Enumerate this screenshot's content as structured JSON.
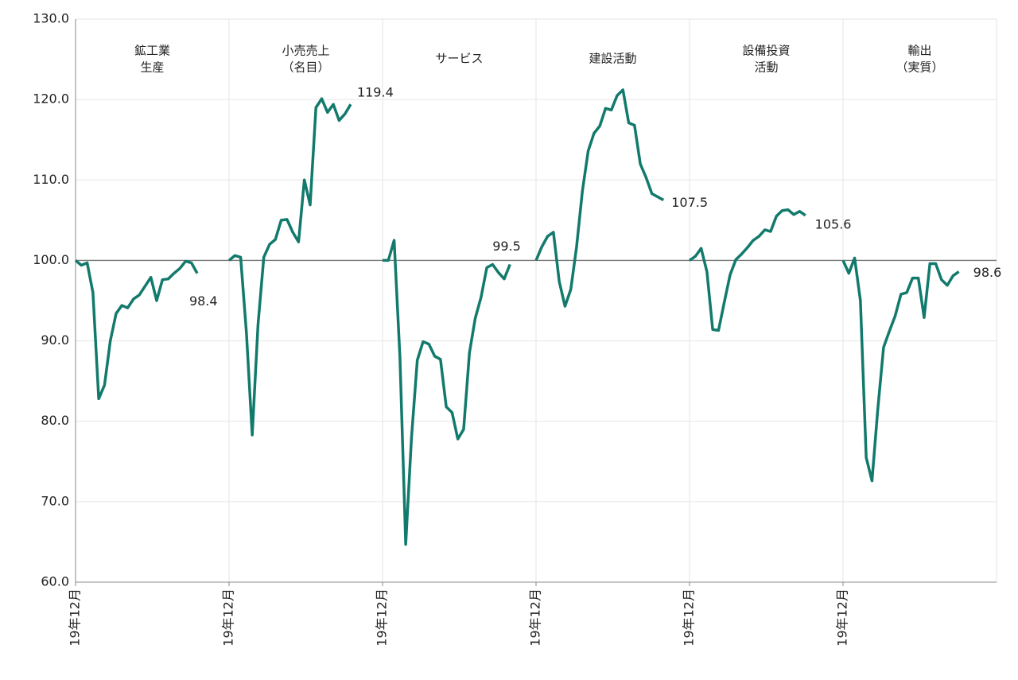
{
  "chart_data": {
    "type": "line",
    "categories": [
      "19年12月",
      null,
      null,
      null,
      null,
      null,
      null,
      null,
      null,
      null,
      null,
      null,
      null,
      null,
      null,
      null,
      null,
      null,
      null,
      null,
      null,
      null,
      null
    ],
    "ylim": [
      60,
      130
    ],
    "yticks": [
      {
        "value": 60,
        "label": "60.0"
      },
      {
        "value": 70,
        "label": "70.0"
      },
      {
        "value": 80,
        "label": "80.0"
      },
      {
        "value": 90,
        "label": "90.0"
      },
      {
        "value": 100,
        "label": "100.0"
      },
      {
        "value": 110,
        "label": "110.0"
      },
      {
        "value": 120,
        "label": "120.0"
      },
      {
        "value": 130,
        "label": "130.0"
      }
    ],
    "reference_line": 100,
    "grid": true,
    "color": "#127a6c",
    "series": [
      {
        "name": [
          "鉱工業",
          "生産"
        ],
        "values": [
          100.0,
          99.4,
          99.7,
          96.0,
          82.8,
          84.5,
          90.0,
          93.4,
          94.4,
          94.1,
          95.2,
          95.7,
          96.8,
          97.9,
          95.0,
          97.6,
          97.7,
          98.4,
          99.0,
          99.9,
          99.7,
          98.4,
          null
        ]
      },
      {
        "name": [
          "小売売上",
          "（名目）"
        ],
        "values": [
          100.0,
          100.6,
          100.4,
          91.0,
          78.3,
          92.0,
          100.4,
          102.0,
          102.6,
          105.0,
          105.1,
          103.5,
          102.3,
          110.0,
          106.9,
          119.0,
          120.1,
          118.4,
          119.4,
          117.4,
          118.2,
          119.4,
          null
        ]
      },
      {
        "name": [
          "サービス"
        ],
        "values": [
          100.0,
          100.0,
          102.5,
          88.0,
          64.7,
          78.0,
          87.6,
          89.9,
          89.6,
          88.1,
          87.7,
          81.8,
          81.1,
          77.8,
          79.0,
          88.5,
          92.8,
          95.4,
          99.1,
          99.5,
          98.5,
          97.7,
          99.5
        ]
      },
      {
        "name": [
          "建設活動"
        ],
        "values": [
          100.0,
          101.7,
          103.0,
          103.5,
          97.4,
          94.3,
          96.4,
          101.7,
          108.6,
          113.6,
          115.8,
          116.7,
          118.9,
          118.7,
          120.5,
          121.2,
          117.1,
          116.8,
          112.0,
          110.3,
          108.3,
          107.9,
          107.5
        ]
      },
      {
        "name": [
          "設備投資",
          "活動"
        ],
        "values": [
          100.0,
          100.5,
          101.5,
          98.6,
          91.4,
          91.3,
          94.8,
          98.2,
          100.1,
          100.8,
          101.6,
          102.5,
          103.0,
          103.8,
          103.6,
          105.5,
          106.2,
          106.3,
          105.7,
          106.1,
          105.6,
          null,
          null
        ]
      },
      {
        "name": [
          "輸出",
          "（実質）"
        ],
        "values": [
          100.0,
          98.4,
          100.3,
          95.0,
          75.5,
          72.6,
          81.5,
          89.2,
          91.2,
          93.1,
          95.8,
          96.0,
          97.8,
          97.8,
          92.9,
          99.6,
          99.6,
          97.6,
          96.9,
          98.1,
          98.6,
          null,
          null
        ]
      }
    ]
  }
}
